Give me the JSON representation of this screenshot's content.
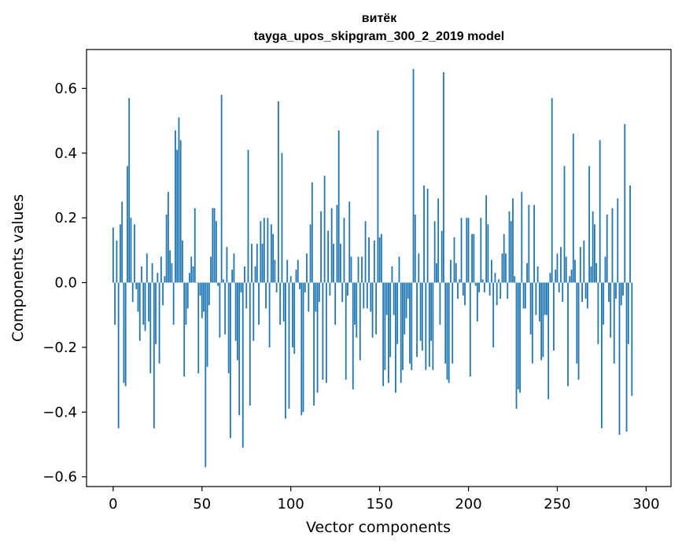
{
  "chart_data": {
    "type": "bar",
    "title": "витёк",
    "subtitle": "tayga_upos_skipgram_300_2_2019 model",
    "xlabel": "Vector components",
    "ylabel": "Components values",
    "xlim": [
      -15,
      314
    ],
    "ylim": [
      -0.63,
      0.72
    ],
    "grid": false,
    "bar_color": "#1f77b4",
    "x_ticks": [
      0,
      50,
      100,
      150,
      200,
      250,
      300
    ],
    "y_ticks": [
      -0.6,
      -0.4,
      -0.2,
      0.0,
      0.2,
      0.4,
      0.6
    ],
    "x_tick_labels": [
      "0",
      "50",
      "100",
      "150",
      "200",
      "250",
      "300"
    ],
    "y_tick_labels": [
      "−0.6",
      "−0.4",
      "−0.2",
      "0.0",
      "0.2",
      "0.4",
      "0.6"
    ],
    "values": [
      0.17,
      -0.13,
      0.13,
      -0.45,
      0.18,
      0.25,
      -0.31,
      -0.32,
      0.36,
      0.57,
      0.2,
      -0.06,
      0.18,
      -0.02,
      -0.09,
      -0.18,
      0.05,
      -0.13,
      -0.15,
      0.09,
      -0.12,
      -0.28,
      0.06,
      -0.45,
      -0.19,
      0.03,
      -0.25,
      0.08,
      -0.07,
      0.02,
      0.21,
      0.28,
      0.1,
      0.06,
      -0.13,
      0.47,
      0.41,
      0.51,
      0.44,
      0.13,
      -0.29,
      -0.13,
      -0.08,
      0.03,
      0.08,
      0.05,
      0.23,
      0.0,
      -0.28,
      -0.04,
      -0.11,
      -0.09,
      -0.57,
      -0.26,
      -0.07,
      0.08,
      0.23,
      0.23,
      0.19,
      -0.01,
      -0.17,
      0.58,
      0.01,
      -0.16,
      0.11,
      -0.28,
      -0.48,
      0.04,
      0.09,
      -0.18,
      -0.24,
      -0.41,
      -0.03,
      -0.51,
      0.05,
      -0.08,
      0.41,
      -0.38,
      0.12,
      -0.18,
      0.05,
      0.12,
      -0.13,
      0.19,
      0.12,
      0.2,
      -0.08,
      0.2,
      -0.2,
      0.18,
      0.15,
      0.07,
      -0.03,
      0.56,
      -0.13,
      0.4,
      -0.12,
      -0.42,
      0.07,
      -0.39,
      0.02,
      -0.2,
      -0.22,
      0.04,
      0.07,
      -0.02,
      -0.41,
      -0.4,
      -0.03,
      0.09,
      -0.09,
      0.18,
      0.31,
      -0.38,
      -0.09,
      -0.34,
      -0.06,
      0.22,
      -0.3,
      0.33,
      -0.31,
      0.16,
      -0.04,
      0.23,
      0.12,
      -0.13,
      0.24,
      0.47,
      0.12,
      -0.06,
      0.2,
      -0.3,
      -0.04,
      0.25,
      0.08,
      -0.33,
      -0.13,
      -0.17,
      0.08,
      -0.24,
      0.08,
      -0.08,
      0.19,
      -0.08,
      0.14,
      -0.09,
      -0.17,
      0.13,
      -0.16,
      0.47,
      0.14,
      0.15,
      -0.32,
      -0.27,
      -0.1,
      -0.31,
      -0.23,
      0.05,
      -0.1,
      -0.34,
      -0.19,
      0.08,
      -0.31,
      -0.27,
      -0.16,
      -0.11,
      -0.05,
      -0.25,
      -0.27,
      0.66,
      0.21,
      -0.23,
      0.09,
      -0.18,
      -0.21,
      0.3,
      -0.27,
      0.29,
      -0.26,
      -0.18,
      -0.27,
      0.19,
      0.06,
      0.26,
      -0.13,
      0.16,
      0.65,
      -0.25,
      -0.3,
      -0.31,
      0.07,
      -0.25,
      0.14,
      0.06,
      -0.05,
      0.01,
      0.2,
      -0.04,
      -0.07,
      0.2,
      0.2,
      -0.29,
      0.15,
      0.15,
      -0.01,
      -0.12,
      -0.03,
      0.2,
      0.01,
      -0.03,
      0.27,
      0.18,
      -0.04,
      0.07,
      -0.2,
      0.03,
      -0.07,
      0.01,
      -0.05,
      0.09,
      0.15,
      0.09,
      -0.05,
      0.22,
      0.19,
      0.26,
      0.02,
      -0.39,
      -0.33,
      -0.34,
      0.28,
      -0.08,
      -0.08,
      0.06,
      0.24,
      -0.16,
      -0.25,
      0.24,
      -0.1,
      0.05,
      -0.12,
      -0.24,
      -0.23,
      -0.1,
      -0.1,
      -0.36,
      0.03,
      0.57,
      -0.21,
      0.04,
      0.09,
      -0.03,
      0.11,
      -0.06,
      0.36,
      0.08,
      -0.32,
      0.02,
      0.04,
      0.46,
      0.07,
      -0.25,
      -0.3,
      0.11,
      -0.06,
      0.13,
      -0.05,
      -0.08,
      0.36,
      0.05,
      0.22,
      0.18,
      0.06,
      -0.19,
      0.44,
      -0.45,
      -0.13,
      0.08,
      0.21,
      -0.06,
      -0.17,
      0.23,
      -0.25,
      -0.05,
      0.26,
      -0.47,
      -0.07,
      -0.04,
      0.49,
      -0.46,
      -0.19,
      0.3,
      -0.35
    ]
  }
}
